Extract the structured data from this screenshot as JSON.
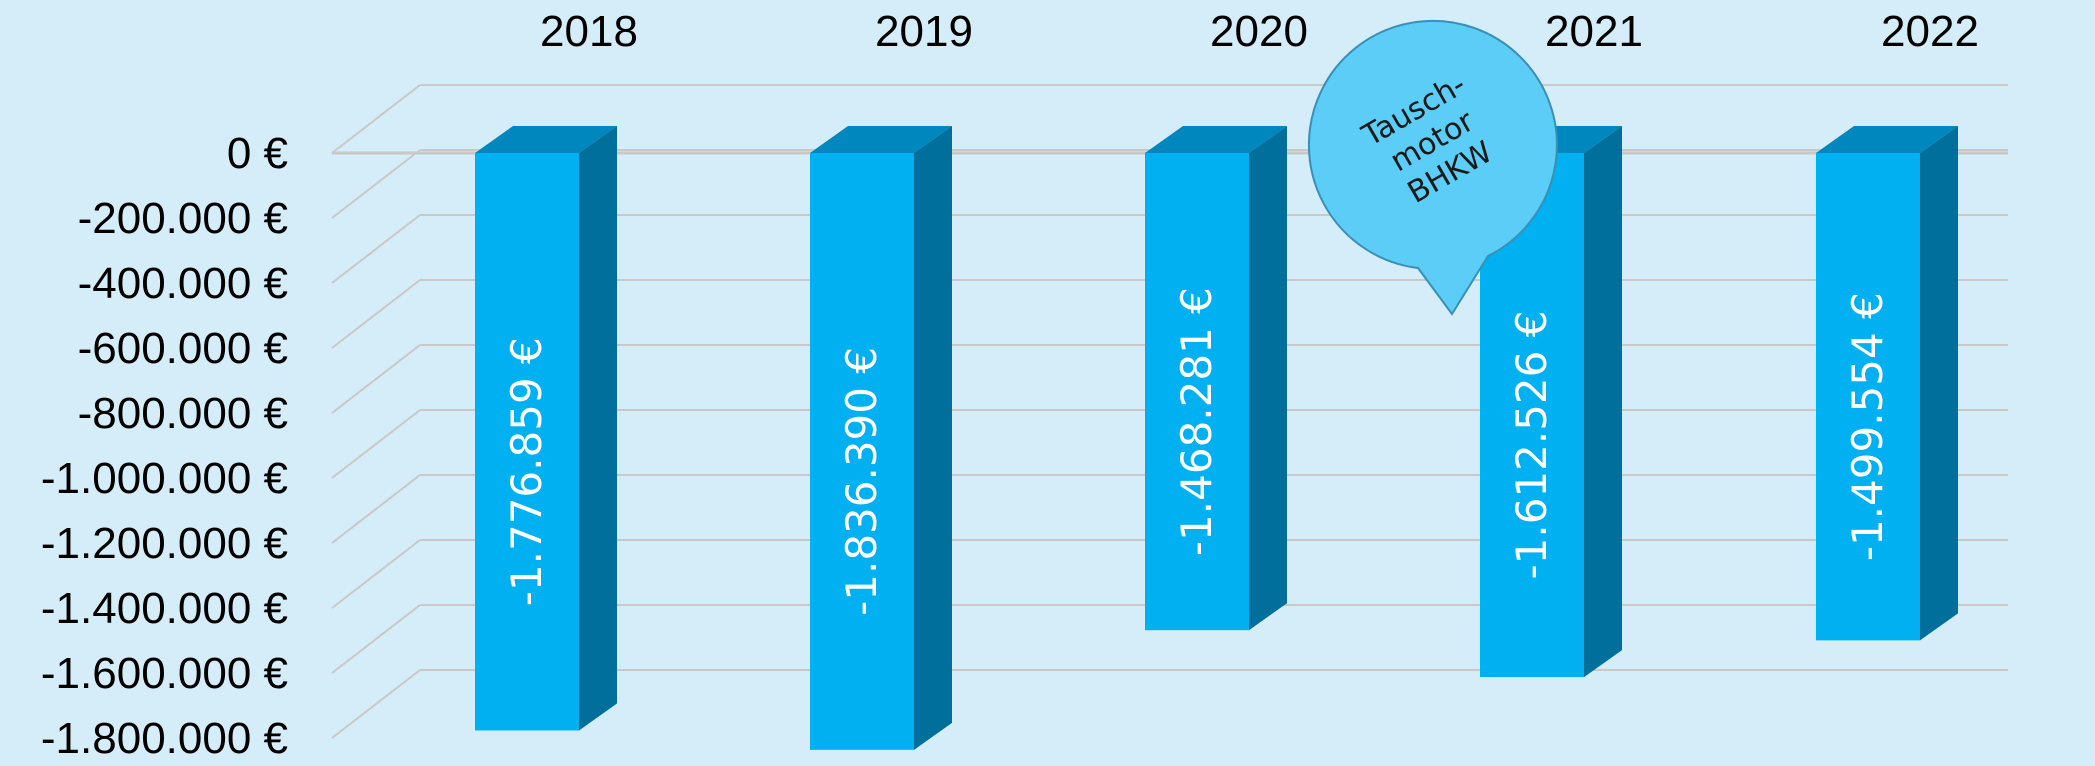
{
  "chart_data": {
    "type": "bar",
    "categories": [
      "2018",
      "2019",
      "2020",
      "2021",
      "2022"
    ],
    "values": [
      -1776859,
      -1836390,
      -1468281,
      -1612526,
      -1499554
    ],
    "value_labels": [
      "-1.776.859 €",
      "-1.836.390 €",
      "-1.468.281 €",
      "-1.612.526 €",
      "-1.499.554 €"
    ],
    "ylim": [
      -1800000,
      0
    ],
    "y_ticks": [
      0,
      -200000,
      -400000,
      -600000,
      -800000,
      -1000000,
      -1200000,
      -1400000,
      -1600000,
      -1800000
    ],
    "y_tick_labels": [
      "0 €",
      "-200.000 €",
      "-400.000 €",
      "-600.000 €",
      "-800.000 €",
      "-1.000.000 €",
      "-1.200.000 €",
      "-1.400.000 €",
      "-1.600.000 €",
      "-1.800.000 €"
    ],
    "x_axis_position": "top",
    "style": "3d-bar",
    "grid": true,
    "annotation": {
      "text_lines": [
        "Tausch-",
        "motor",
        "BHKW"
      ],
      "category": "2021"
    },
    "colors": {
      "background": "#d5ecf9",
      "bar_front": "#00b0f0",
      "bar_top": "#0087be",
      "bar_side": "#006f9c",
      "gridline": "#c8c8c8",
      "callout_fill": "#5bcdf7",
      "callout_stroke": "#3a8fb5"
    }
  }
}
